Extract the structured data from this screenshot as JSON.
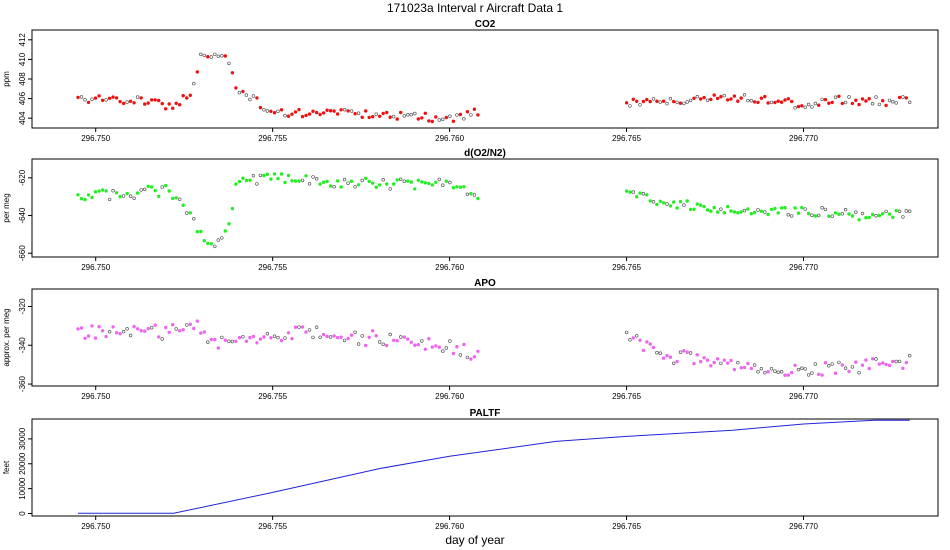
{
  "title": "171023a   Interval r Aircraft Data 1",
  "xlabel": "day of year",
  "chart_data": [
    {
      "type": "scatter",
      "title": "CO2",
      "ylabel": "ppm",
      "xlim": [
        296.7482,
        296.7738
      ],
      "ylim": [
        403.0,
        413.0
      ],
      "yticks": [
        404,
        406,
        408,
        410,
        412
      ],
      "ytick_labels": [
        "404",
        "406",
        "408",
        "410",
        "412"
      ],
      "xticks": [
        296.75,
        296.755,
        296.76,
        296.765,
        296.77
      ],
      "xtick_labels": [
        "296.750",
        "296.755",
        "296.760",
        "296.765",
        "296.770"
      ],
      "color": "#ee1111",
      "segments": [
        {
          "x_start": 296.7495,
          "x_end": 296.7608,
          "knots_x": [
            296.7495,
            296.7515,
            296.7522,
            296.7527,
            296.753,
            296.7537,
            296.754,
            296.7548,
            296.7555,
            296.757,
            296.759,
            296.76,
            296.7608
          ],
          "knots_y": [
            406.0,
            405.8,
            405.0,
            406.7,
            410.5,
            410.3,
            407.0,
            405.0,
            404.4,
            404.6,
            404.1,
            403.9,
            404.6
          ],
          "noise": 0.5,
          "n": 115
        },
        {
          "x_start": 296.765,
          "x_end": 296.773,
          "knots_x": [
            296.765,
            296.766,
            296.767,
            296.768,
            296.769,
            296.77,
            296.771,
            296.772,
            296.773
          ],
          "knots_y": [
            405.5,
            405.6,
            406.0,
            406.0,
            405.8,
            405.4,
            405.8,
            405.7,
            405.9
          ],
          "noise": 0.5,
          "n": 85
        }
      ]
    },
    {
      "type": "scatter",
      "title": "d(O2/N2)",
      "ylabel": "per meg",
      "xlim": [
        296.7482,
        296.7738
      ],
      "ylim": [
        -662.0,
        -610.0
      ],
      "yticks": [
        -660,
        -640,
        -620
      ],
      "ytick_labels": [
        "-660",
        "-640",
        "-620"
      ],
      "xticks": [
        296.75,
        296.755,
        296.76,
        296.765,
        296.77
      ],
      "xtick_labels": [
        "296.750",
        "296.755",
        "296.760",
        "296.765",
        "296.770"
      ],
      "color": "#22ee22",
      "segments": [
        {
          "x_start": 296.7495,
          "x_end": 296.7608,
          "knots_x": [
            296.7495,
            296.751,
            296.752,
            296.7525,
            296.753,
            296.7533,
            296.7537,
            296.754,
            296.755,
            296.757,
            296.759,
            296.76,
            296.7608
          ],
          "knots_y": [
            -630.0,
            -628.0,
            -626.0,
            -635.0,
            -650.0,
            -655.0,
            -648.0,
            -622.0,
            -620.0,
            -623.0,
            -623.0,
            -622.0,
            -628.0
          ],
          "noise": 3.5,
          "n": 115
        },
        {
          "x_start": 296.765,
          "x_end": 296.773,
          "knots_x": [
            296.765,
            296.766,
            296.767,
            296.768,
            296.77,
            296.772,
            296.773
          ],
          "knots_y": [
            -628.0,
            -633.0,
            -636.0,
            -638.0,
            -638.0,
            -640.0,
            -638.0
          ],
          "noise": 3.0,
          "n": 85
        }
      ]
    },
    {
      "type": "scatter",
      "title": "APO",
      "ylabel": "approx. per meg",
      "xlim": [
        296.7482,
        296.7738
      ],
      "ylim": [
        -361.0,
        -311.0
      ],
      "yticks": [
        -360,
        -340,
        -320
      ],
      "ytick_labels": [
        "-360",
        "-340",
        "-320"
      ],
      "xticks": [
        296.75,
        296.755,
        296.76,
        296.765,
        296.77
      ],
      "xtick_labels": [
        "296.750",
        "296.755",
        "296.760",
        "296.765",
        "296.770"
      ],
      "color": "#ee66ee",
      "segments": [
        {
          "x_start": 296.7495,
          "x_end": 296.7608,
          "knots_x": [
            296.7495,
            296.752,
            296.7527,
            296.7532,
            296.754,
            296.756,
            296.758,
            296.76,
            296.7608
          ],
          "knots_y": [
            -333.0,
            -333.0,
            -328.0,
            -337.0,
            -339.0,
            -333.0,
            -337.0,
            -340.0,
            -346.0
          ],
          "noise": 4.5,
          "n": 115
        },
        {
          "x_start": 296.765,
          "x_end": 296.773,
          "knots_x": [
            296.765,
            296.766,
            296.768,
            296.77,
            296.772,
            296.773
          ],
          "knots_y": [
            -335.0,
            -345.0,
            -350.0,
            -353.0,
            -351.0,
            -348.0
          ],
          "noise": 4.5,
          "n": 85
        }
      ]
    },
    {
      "type": "line",
      "title": "PALTF",
      "ylabel": "feet",
      "xlim": [
        296.7482,
        296.7738
      ],
      "ylim": [
        -1000,
        38000
      ],
      "yticks": [
        0,
        10000,
        20000,
        30000
      ],
      "ytick_labels": [
        "0",
        "10000",
        "20000",
        "30000"
      ],
      "xticks": [
        296.75,
        296.755,
        296.76,
        296.765,
        296.77
      ],
      "xtick_labels": [
        "296.750",
        "296.755",
        "296.760",
        "296.765",
        "296.770"
      ],
      "color": "#2222dd",
      "x": [
        296.7495,
        296.7522,
        296.755,
        296.758,
        296.76,
        296.763,
        296.765,
        296.768,
        296.77,
        296.772,
        296.773
      ],
      "y": [
        100,
        100,
        8500,
        18000,
        23000,
        29000,
        31000,
        33500,
        36000,
        37500,
        37500
      ]
    }
  ]
}
